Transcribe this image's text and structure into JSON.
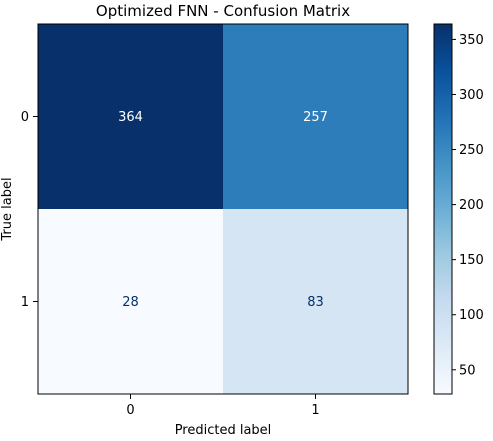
{
  "chart_data": {
    "type": "heatmap",
    "title": "Optimized FNN - Confusion Matrix",
    "xlabel": "Predicted label",
    "ylabel": "True label",
    "x_categories": [
      "0",
      "1"
    ],
    "y_categories": [
      "0",
      "1"
    ],
    "values": [
      [
        364,
        257
      ],
      [
        28,
        83
      ]
    ],
    "cell_labels": [
      [
        "364",
        "257"
      ],
      [
        "28",
        "83"
      ]
    ],
    "colormap": "Blues",
    "color_range": [
      28,
      364
    ],
    "colorbar": {
      "ticks": [
        50,
        100,
        150,
        200,
        250,
        300,
        350
      ],
      "tick_labels": [
        "50",
        "100",
        "150",
        "200",
        "250",
        "300",
        "350"
      ],
      "range": [
        28,
        364
      ]
    },
    "cell_colors": [
      [
        "#08306b",
        "#2c7dba"
      ],
      [
        "#f7fbff",
        "#d6e5f4"
      ]
    ],
    "text_colors": [
      [
        "#ffffff",
        "#ffffff"
      ],
      [
        "#08306b",
        "#08306b"
      ]
    ],
    "grid": false,
    "legend": "colorbar-right"
  }
}
